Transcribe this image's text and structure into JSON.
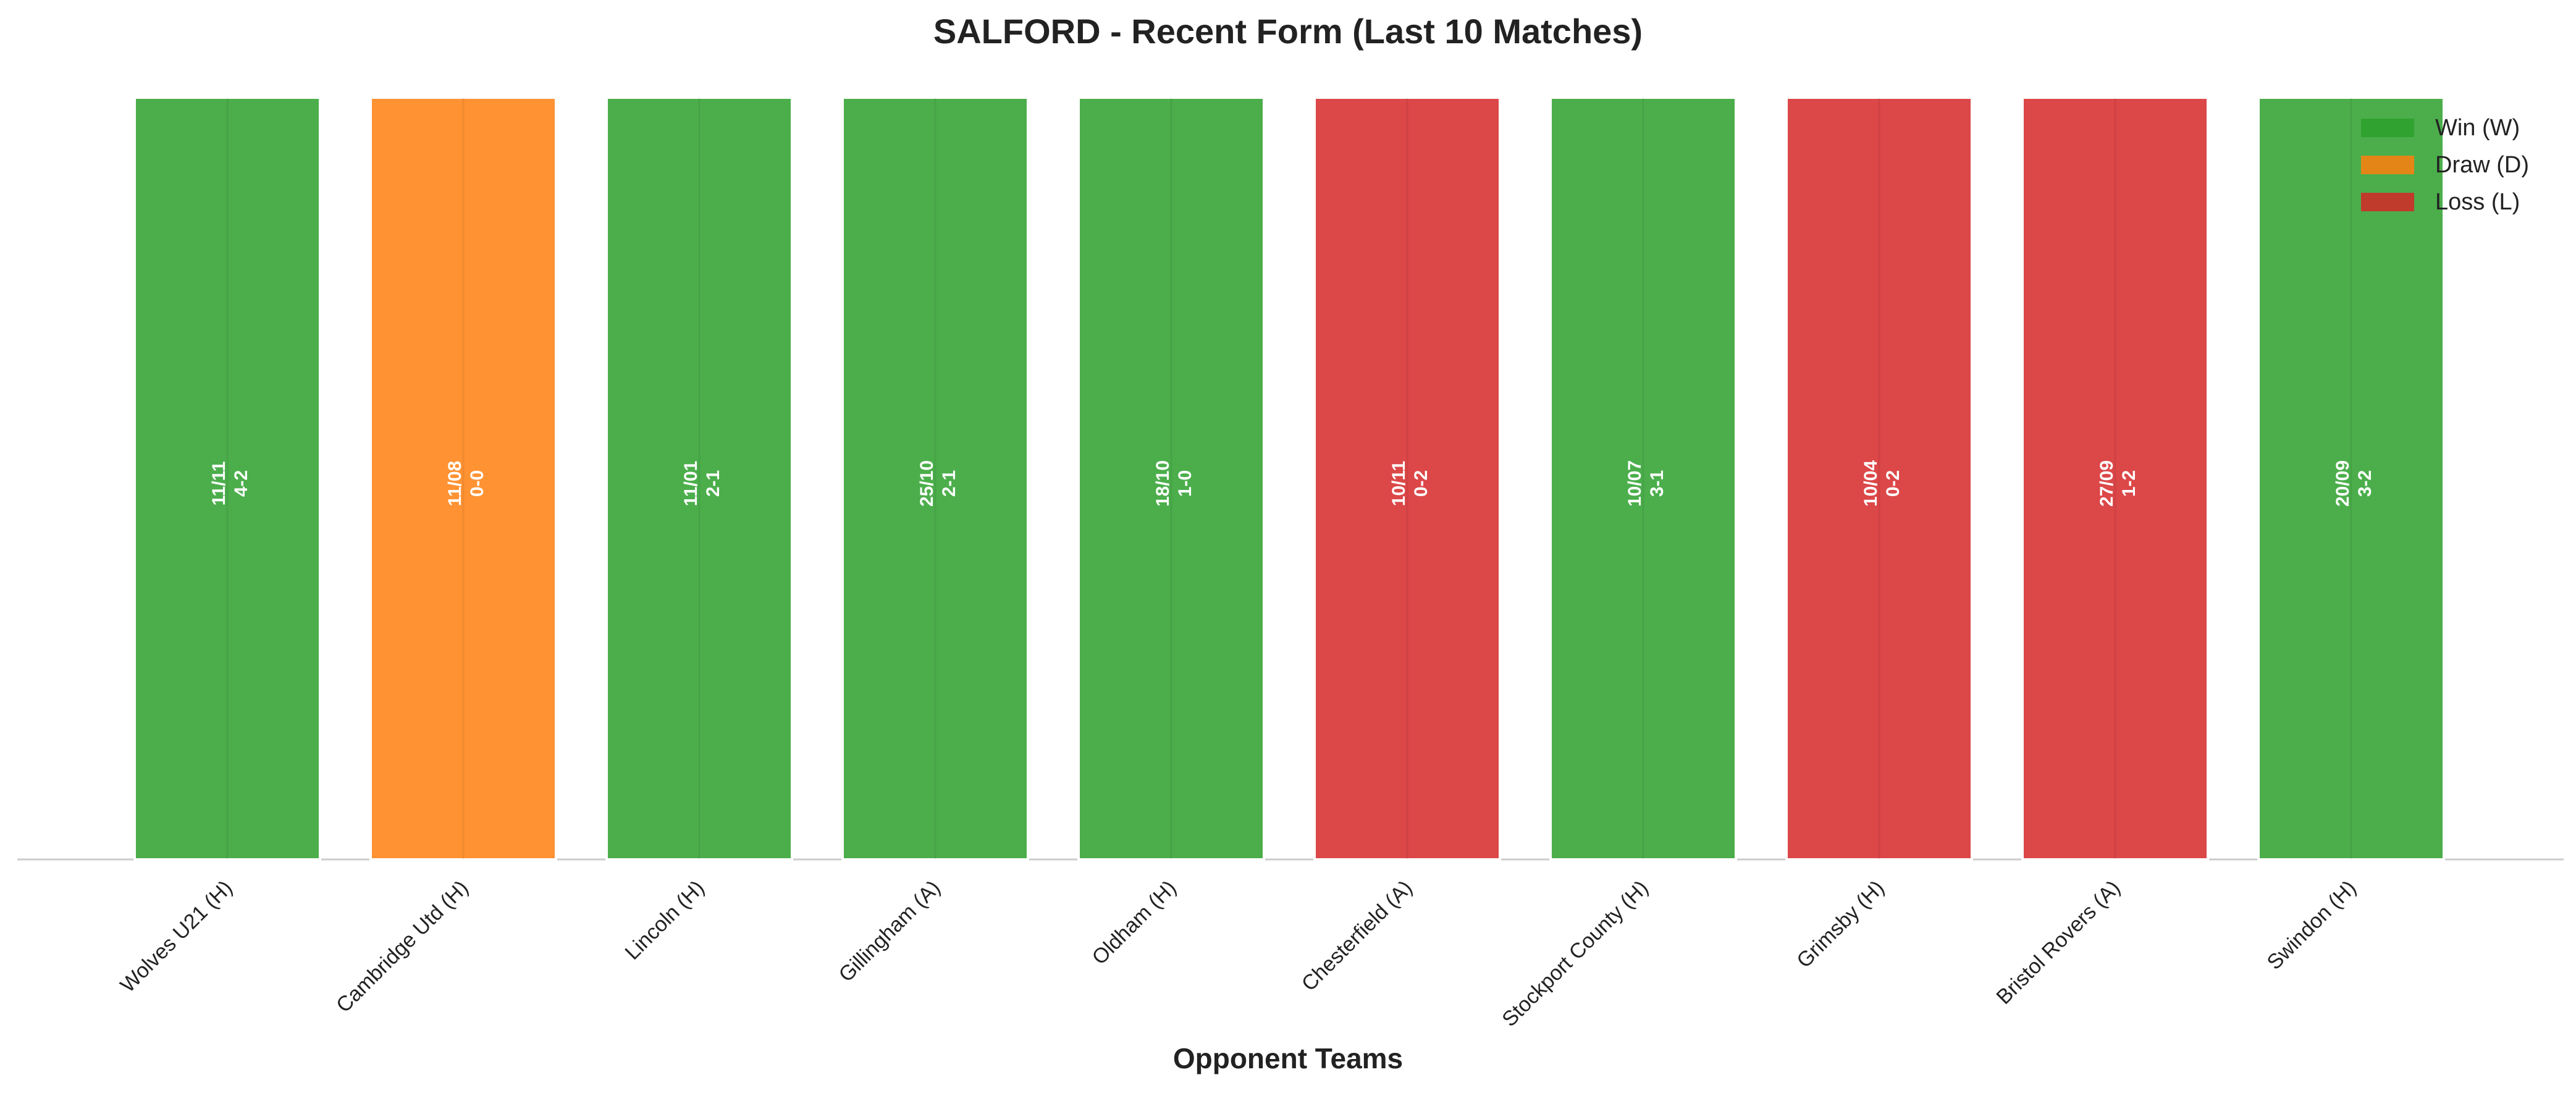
{
  "chart_data": {
    "type": "bar",
    "title": "SALFORD - Recent Form (Last 10 Matches)",
    "xlabel": "Opponent Teams",
    "ylabel": "",
    "grid": true,
    "legend_position": "top-right",
    "categories": [
      "Wolves U21 (H)",
      "Cambridge Utd (H)",
      "Lincoln (H)",
      "Gillingham (A)",
      "Oldham (H)",
      "Chesterfield (A)",
      "Stockport County (H)",
      "Grimsby (H)",
      "Bristol Rovers (A)",
      "Swindon (H)"
    ],
    "values": [
      1,
      1,
      1,
      1,
      1,
      1,
      1,
      1,
      1,
      1
    ],
    "ylim": [
      0,
      1
    ],
    "results": [
      "W",
      "D",
      "W",
      "W",
      "W",
      "L",
      "W",
      "L",
      "L",
      "W"
    ],
    "dates": [
      "11/11",
      "11/08",
      "11/01",
      "25/10",
      "18/10",
      "10/11",
      "10/07",
      "10/04",
      "27/09",
      "20/09"
    ],
    "scores": [
      "4-2",
      "0-0",
      "2-1",
      "2-1",
      "1-0",
      "0-2",
      "3-1",
      "0-2",
      "1-2",
      "3-2"
    ],
    "legend": [
      {
        "key": "W",
        "label": "Win (W)",
        "color": "#2ca02c"
      },
      {
        "key": "D",
        "label": "Draw (D)",
        "color": "#ff7f0e"
      },
      {
        "key": "L",
        "label": "Loss (L)",
        "color": "#d62728"
      }
    ]
  }
}
